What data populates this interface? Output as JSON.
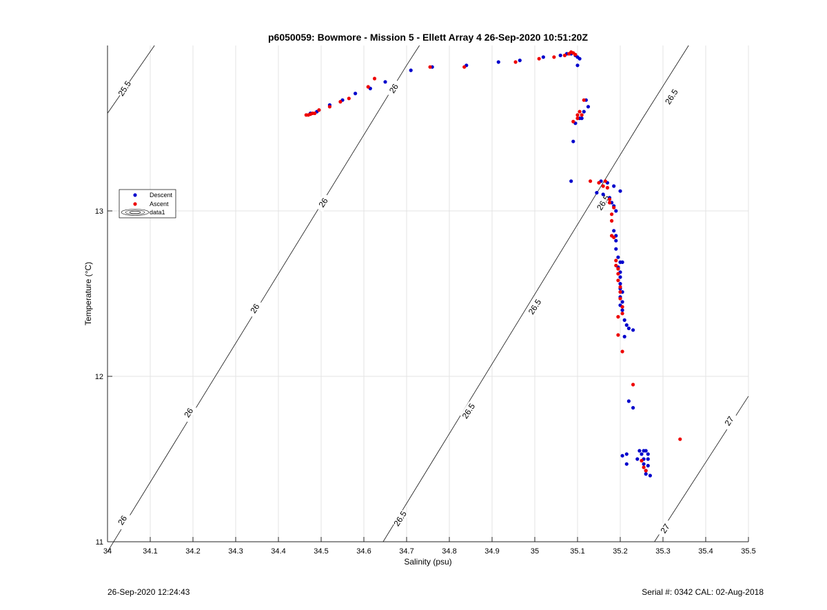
{
  "chart_data": {
    "type": "scatter",
    "title": "p6050059: Bowmore - Mission 5 - Ellett Array 4 26-Sep-2020 10:51:20Z",
    "xlabel": "Salinity (psu)",
    "ylabel": "Temperature (°C)",
    "xlim": [
      34,
      35.5
    ],
    "ylim": [
      11,
      14
    ],
    "x_ticks": [
      34,
      34.1,
      34.2,
      34.3,
      34.4,
      34.5,
      34.6,
      34.7,
      34.8,
      34.9,
      35,
      35.1,
      35.2,
      35.3,
      35.4,
      35.5
    ],
    "y_ticks": [
      11,
      12,
      13
    ],
    "grid": true,
    "legend_position": "left",
    "legend": [
      "Descent",
      "Ascent",
      "data1"
    ],
    "series": [
      {
        "name": "Descent",
        "color": "#0000cc",
        "points": [
          [
            34.475,
            13.59
          ],
          [
            34.49,
            13.6
          ],
          [
            34.52,
            13.64
          ],
          [
            34.55,
            13.67
          ],
          [
            34.58,
            13.71
          ],
          [
            34.615,
            13.74
          ],
          [
            34.65,
            13.78
          ],
          [
            34.71,
            13.85
          ],
          [
            34.76,
            13.87
          ],
          [
            34.84,
            13.88
          ],
          [
            34.915,
            13.9
          ],
          [
            34.965,
            13.91
          ],
          [
            35.02,
            13.93
          ],
          [
            35.06,
            13.94
          ],
          [
            35.075,
            13.95
          ],
          [
            35.085,
            13.95
          ],
          [
            35.095,
            13.94
          ],
          [
            35.1,
            13.93
          ],
          [
            35.105,
            13.92
          ],
          [
            35.1,
            13.88
          ],
          [
            35.12,
            13.67
          ],
          [
            35.125,
            13.63
          ],
          [
            35.115,
            13.6
          ],
          [
            35.105,
            13.56
          ],
          [
            35.11,
            13.56
          ],
          [
            35.095,
            13.53
          ],
          [
            35.09,
            13.42
          ],
          [
            35.085,
            13.18
          ],
          [
            35.155,
            13.18
          ],
          [
            35.17,
            13.17
          ],
          [
            35.185,
            13.15
          ],
          [
            35.2,
            13.12
          ],
          [
            35.145,
            13.11
          ],
          [
            35.16,
            13.1
          ],
          [
            35.175,
            13.08
          ],
          [
            35.18,
            13.05
          ],
          [
            35.185,
            13.03
          ],
          [
            35.19,
            13.0
          ],
          [
            35.185,
            12.88
          ],
          [
            35.19,
            12.85
          ],
          [
            35.19,
            12.82
          ],
          [
            35.19,
            12.77
          ],
          [
            35.195,
            12.72
          ],
          [
            35.2,
            12.69
          ],
          [
            35.205,
            12.69
          ],
          [
            35.195,
            12.66
          ],
          [
            35.2,
            12.63
          ],
          [
            35.2,
            12.6
          ],
          [
            35.2,
            12.56
          ],
          [
            35.2,
            12.53
          ],
          [
            35.205,
            12.51
          ],
          [
            35.2,
            12.48
          ],
          [
            35.205,
            12.45
          ],
          [
            35.2,
            12.43
          ],
          [
            35.205,
            12.4
          ],
          [
            35.21,
            12.34
          ],
          [
            35.215,
            12.31
          ],
          [
            35.22,
            12.29
          ],
          [
            35.23,
            12.28
          ],
          [
            35.21,
            12.24
          ],
          [
            35.22,
            11.85
          ],
          [
            35.23,
            11.81
          ],
          [
            35.245,
            11.55
          ],
          [
            35.255,
            11.55
          ],
          [
            35.26,
            11.55
          ],
          [
            35.25,
            11.53
          ],
          [
            35.265,
            11.53
          ],
          [
            35.205,
            11.52
          ],
          [
            35.215,
            11.53
          ],
          [
            35.24,
            11.5
          ],
          [
            35.255,
            11.5
          ],
          [
            35.265,
            11.5
          ],
          [
            35.255,
            11.47
          ],
          [
            35.265,
            11.46
          ],
          [
            35.215,
            11.47
          ],
          [
            35.26,
            11.43
          ],
          [
            35.26,
            11.41
          ],
          [
            35.27,
            11.4
          ]
        ]
      },
      {
        "name": "Ascent",
        "color": "#ee0000",
        "points": [
          [
            34.465,
            13.58
          ],
          [
            34.47,
            13.58
          ],
          [
            34.475,
            13.585
          ],
          [
            34.48,
            13.59
          ],
          [
            34.485,
            13.59
          ],
          [
            34.495,
            13.61
          ],
          [
            34.52,
            13.63
          ],
          [
            34.545,
            13.66
          ],
          [
            34.565,
            13.68
          ],
          [
            34.61,
            13.75
          ],
          [
            34.625,
            13.8
          ],
          [
            34.755,
            13.87
          ],
          [
            34.835,
            13.87
          ],
          [
            34.955,
            13.9
          ],
          [
            35.01,
            13.92
          ],
          [
            35.045,
            13.93
          ],
          [
            35.07,
            13.94
          ],
          [
            35.08,
            13.95
          ],
          [
            35.085,
            13.96
          ],
          [
            35.09,
            13.955
          ],
          [
            35.095,
            13.945
          ],
          [
            35.115,
            13.67
          ],
          [
            35.105,
            13.6
          ],
          [
            35.11,
            13.58
          ],
          [
            35.1,
            13.58
          ],
          [
            35.1,
            13.56
          ],
          [
            35.09,
            13.54
          ],
          [
            35.13,
            13.18
          ],
          [
            35.165,
            13.18
          ],
          [
            35.15,
            13.17
          ],
          [
            35.16,
            13.15
          ],
          [
            35.17,
            13.14
          ],
          [
            35.175,
            13.07
          ],
          [
            35.175,
            13.05
          ],
          [
            35.185,
            13.02
          ],
          [
            35.18,
            12.98
          ],
          [
            35.18,
            12.94
          ],
          [
            35.18,
            12.85
          ],
          [
            35.185,
            12.84
          ],
          [
            35.19,
            12.7
          ],
          [
            35.19,
            12.67
          ],
          [
            35.195,
            12.65
          ],
          [
            35.195,
            12.62
          ],
          [
            35.195,
            12.58
          ],
          [
            35.2,
            12.54
          ],
          [
            35.2,
            12.51
          ],
          [
            35.2,
            12.47
          ],
          [
            35.205,
            12.42
          ],
          [
            35.205,
            12.38
          ],
          [
            35.195,
            12.36
          ],
          [
            35.195,
            12.25
          ],
          [
            35.205,
            12.15
          ],
          [
            35.23,
            11.95
          ],
          [
            35.34,
            11.62
          ],
          [
            35.25,
            11.49
          ],
          [
            35.255,
            11.45
          ],
          [
            35.26,
            11.43
          ]
        ]
      }
    ],
    "contours": [
      {
        "label": "25.5",
        "points": [
          [
            34.0,
            13.59
          ],
          [
            34.11,
            14.0
          ]
        ]
      },
      {
        "label": "26",
        "points": [
          [
            34.0,
            10.94
          ],
          [
            34.7,
            13.88
          ],
          [
            34.73,
            14.0
          ]
        ]
      },
      {
        "label": "26.5",
        "points": [
          [
            34.645,
            11.0
          ],
          [
            35.25,
            13.55
          ],
          [
            35.36,
            14.0
          ]
        ]
      },
      {
        "label": "27",
        "points": [
          [
            35.28,
            11.0
          ],
          [
            35.5,
            11.88
          ]
        ]
      }
    ],
    "contour_labels": [
      {
        "text": "25.5",
        "at": [
          34.04,
          13.74
        ]
      },
      {
        "text": "26",
        "at": [
          34.67,
          13.74
        ]
      },
      {
        "text": "26",
        "at": [
          34.505,
          13.05
        ]
      },
      {
        "text": "26",
        "at": [
          34.345,
          12.41
        ]
      },
      {
        "text": "26",
        "at": [
          34.19,
          11.78
        ]
      },
      {
        "text": "26",
        "at": [
          34.035,
          11.13
        ]
      },
      {
        "text": "26.5",
        "at": [
          35.32,
          13.69
        ]
      },
      {
        "text": "26.5",
        "at": [
          35.16,
          13.05
        ]
      },
      {
        "text": "26.5",
        "at": [
          35.0,
          12.42
        ]
      },
      {
        "text": "26.5",
        "at": [
          34.845,
          11.79
        ]
      },
      {
        "text": "26.5",
        "at": [
          34.685,
          11.14
        ]
      },
      {
        "text": "27",
        "at": [
          35.455,
          11.73
        ]
      },
      {
        "text": "27",
        "at": [
          35.305,
          11.08
        ]
      }
    ]
  },
  "footer": {
    "left_timestamp": "26-Sep-2020 12:24:43",
    "right_info": "Serial #: 0342  CAL: 02-Aug-2018"
  }
}
